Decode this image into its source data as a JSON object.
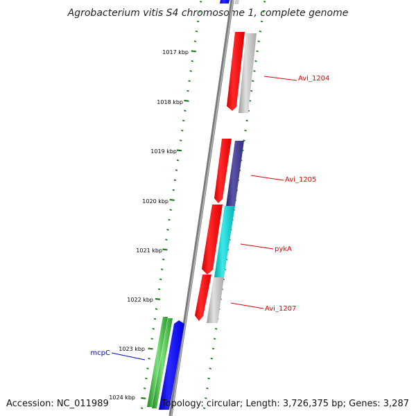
{
  "title": "Agrobacterium vitis S4 chromosome 1, complete genome",
  "ruler": [
    "1017 kbp",
    "1018 kbp",
    "1019 kbp",
    "1020 kbp",
    "1021 kbp",
    "1022 kbp",
    "1023 kbp",
    "1024 kbp"
  ],
  "genes": [
    {
      "id": "Avi_1204",
      "label": "Avi_1204",
      "label_color": "#e00000"
    },
    {
      "id": "Avi_1205",
      "label": "Avi_1205",
      "label_color": "#e00000"
    },
    {
      "id": "pykA",
      "label": "pykA",
      "label_color": "#e00000"
    },
    {
      "id": "Avi_1207",
      "label": "Avi_1207",
      "label_color": "#e00000"
    },
    {
      "id": "mcpC",
      "label": "mcpC",
      "label_color": "#0000cc"
    }
  ],
  "footer": {
    "accession": "Accession: NC_011989",
    "topology": "Topology: circular; Length: 3,726,375 bp; Genes: 3,287"
  },
  "colors": {
    "backbone": "#808080",
    "ticks": "#1e7a1e",
    "cds_red": "#ff0000",
    "cds_blue": "#0000ee",
    "cds_green": "#2ea82e",
    "gene_gray": "#b4b4b4",
    "gene_navy": "#3b3487",
    "gene_cyan": "#00c8c8"
  }
}
